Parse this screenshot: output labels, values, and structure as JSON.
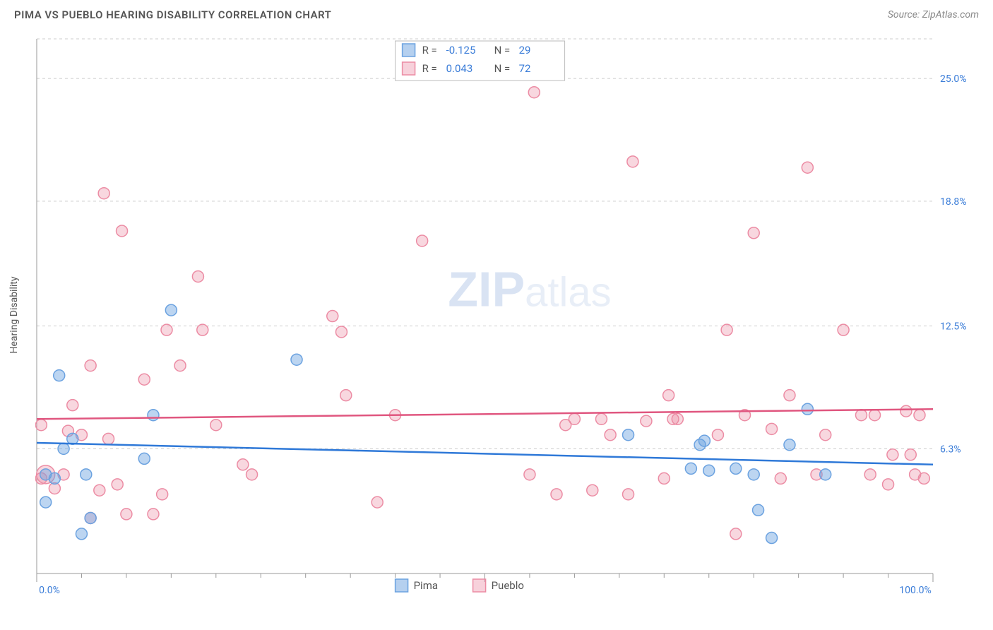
{
  "title": "PIMA VS PUEBLO HEARING DISABILITY CORRELATION CHART",
  "source_label": "Source: ZipAtlas.com",
  "watermark_bold": "ZIP",
  "watermark_light": "atlas",
  "yaxis_label": "Hearing Disability",
  "chart": {
    "type": "scatter",
    "xlim": [
      0,
      100
    ],
    "ylim": [
      0,
      27
    ],
    "y_gridlines": [
      6.3,
      12.5,
      18.8,
      25.0,
      27.0
    ],
    "y_tick_labels": [
      {
        "v": 6.3,
        "label": "6.3%"
      },
      {
        "v": 12.5,
        "label": "12.5%"
      },
      {
        "v": 18.8,
        "label": "18.8%"
      },
      {
        "v": 25.0,
        "label": "25.0%"
      }
    ],
    "x_ticks_minor": [
      5,
      10,
      15,
      20,
      25,
      30,
      35,
      40,
      45,
      55,
      60,
      65,
      70,
      75,
      80,
      85,
      90,
      95
    ],
    "x_ticks_major": [
      0,
      50,
      100
    ],
    "x_tick_labels": [
      {
        "v": 0,
        "label": "0.0%"
      },
      {
        "v": 100,
        "label": "100.0%"
      }
    ],
    "background_color": "#ffffff",
    "grid_color": "#cccccc",
    "axis_color": "#999999",
    "tick_label_color": "#3b7dd8",
    "series": {
      "pima": {
        "label": "Pima",
        "marker_color_fill": "rgba(107,162,224,0.45)",
        "marker_color_stroke": "#6ba2e0",
        "marker_radius": 8,
        "line_color": "#2f79d8",
        "line_width": 2.5,
        "trend": {
          "x1": 0,
          "y1": 6.6,
          "x2": 100,
          "y2": 5.5
        },
        "r_value": "-0.125",
        "n_value": "29",
        "points": [
          {
            "x": 1,
            "y": 5.0
          },
          {
            "x": 1,
            "y": 3.6
          },
          {
            "x": 2,
            "y": 4.8
          },
          {
            "x": 2.5,
            "y": 10.0
          },
          {
            "x": 3,
            "y": 6.3
          },
          {
            "x": 4,
            "y": 6.8
          },
          {
            "x": 5,
            "y": 2.0
          },
          {
            "x": 5.5,
            "y": 5.0
          },
          {
            "x": 6,
            "y": 2.8
          },
          {
            "x": 12,
            "y": 5.8
          },
          {
            "x": 13,
            "y": 8.0
          },
          {
            "x": 15,
            "y": 13.3
          },
          {
            "x": 29,
            "y": 10.8
          },
          {
            "x": 66,
            "y": 7.0
          },
          {
            "x": 73,
            "y": 5.3
          },
          {
            "x": 74,
            "y": 6.5
          },
          {
            "x": 74.5,
            "y": 6.7
          },
          {
            "x": 75,
            "y": 5.2
          },
          {
            "x": 80,
            "y": 5.0
          },
          {
            "x": 80.5,
            "y": 3.2
          },
          {
            "x": 84,
            "y": 6.5
          },
          {
            "x": 78,
            "y": 5.3
          },
          {
            "x": 82,
            "y": 1.8
          },
          {
            "x": 86,
            "y": 8.3
          },
          {
            "x": 88,
            "y": 5.0
          }
        ]
      },
      "pueblo": {
        "label": "Pueblo",
        "marker_color_fill": "rgba(236,140,164,0.35)",
        "marker_color_stroke": "#ec8ca4",
        "marker_radius": 8,
        "line_color": "#e0567f",
        "line_width": 2.5,
        "trend": {
          "x1": 0,
          "y1": 7.8,
          "x2": 100,
          "y2": 8.3
        },
        "r_value": "0.043",
        "n_value": "72",
        "points": [
          {
            "x": 0.5,
            "y": 4.8
          },
          {
            "x": 0.5,
            "y": 7.5
          },
          {
            "x": 1,
            "y": 5.0,
            "r": 13
          },
          {
            "x": 2,
            "y": 4.3
          },
          {
            "x": 3,
            "y": 5.0
          },
          {
            "x": 3.5,
            "y": 7.2
          },
          {
            "x": 4,
            "y": 8.5
          },
          {
            "x": 5,
            "y": 7.0
          },
          {
            "x": 6,
            "y": 2.8
          },
          {
            "x": 6,
            "y": 10.5
          },
          {
            "x": 7,
            "y": 4.2
          },
          {
            "x": 7.5,
            "y": 19.2
          },
          {
            "x": 8,
            "y": 6.8
          },
          {
            "x": 9,
            "y": 4.5
          },
          {
            "x": 9.5,
            "y": 17.3
          },
          {
            "x": 10,
            "y": 3.0
          },
          {
            "x": 12,
            "y": 9.8
          },
          {
            "x": 13,
            "y": 3.0
          },
          {
            "x": 14,
            "y": 4.0
          },
          {
            "x": 14.5,
            "y": 12.3
          },
          {
            "x": 16,
            "y": 10.5
          },
          {
            "x": 18,
            "y": 15.0
          },
          {
            "x": 18.5,
            "y": 12.3
          },
          {
            "x": 20,
            "y": 7.5
          },
          {
            "x": 23,
            "y": 5.5
          },
          {
            "x": 24,
            "y": 5.0
          },
          {
            "x": 33,
            "y": 13.0
          },
          {
            "x": 34,
            "y": 12.2
          },
          {
            "x": 34.5,
            "y": 9.0
          },
          {
            "x": 38,
            "y": 3.6
          },
          {
            "x": 40,
            "y": 8.0
          },
          {
            "x": 43,
            "y": 16.8
          },
          {
            "x": 55,
            "y": 5.0
          },
          {
            "x": 55.5,
            "y": 24.3
          },
          {
            "x": 58,
            "y": 4.0
          },
          {
            "x": 59,
            "y": 7.5
          },
          {
            "x": 60,
            "y": 7.8
          },
          {
            "x": 62,
            "y": 4.2
          },
          {
            "x": 63,
            "y": 7.8
          },
          {
            "x": 64,
            "y": 7.0
          },
          {
            "x": 66,
            "y": 4.0
          },
          {
            "x": 66.5,
            "y": 20.8
          },
          {
            "x": 68,
            "y": 7.7
          },
          {
            "x": 70,
            "y": 4.8
          },
          {
            "x": 70.5,
            "y": 9.0
          },
          {
            "x": 71,
            "y": 7.8
          },
          {
            "x": 71.5,
            "y": 7.8
          },
          {
            "x": 76,
            "y": 7.0
          },
          {
            "x": 77,
            "y": 12.3
          },
          {
            "x": 78,
            "y": 2.0
          },
          {
            "x": 79,
            "y": 8.0
          },
          {
            "x": 80,
            "y": 17.2
          },
          {
            "x": 82,
            "y": 7.3
          },
          {
            "x": 83,
            "y": 4.8
          },
          {
            "x": 84,
            "y": 9.0
          },
          {
            "x": 86,
            "y": 20.5
          },
          {
            "x": 87,
            "y": 5.0
          },
          {
            "x": 88,
            "y": 7.0
          },
          {
            "x": 90,
            "y": 12.3
          },
          {
            "x": 92,
            "y": 8.0
          },
          {
            "x": 93,
            "y": 5.0
          },
          {
            "x": 93.5,
            "y": 8.0
          },
          {
            "x": 95,
            "y": 4.5
          },
          {
            "x": 95.5,
            "y": 6.0
          },
          {
            "x": 97,
            "y": 8.2
          },
          {
            "x": 97.5,
            "y": 6.0
          },
          {
            "x": 98,
            "y": 5.0
          },
          {
            "x": 98.5,
            "y": 8.0
          },
          {
            "x": 99,
            "y": 4.8
          }
        ]
      }
    },
    "legend_top": {
      "rows": [
        {
          "swatch": "pima",
          "r_label": "R =",
          "r": "-0.125",
          "n_label": "N =",
          "n": "29"
        },
        {
          "swatch": "pueblo",
          "r_label": "R =",
          "r": "0.043",
          "n_label": "N =",
          "n": "72"
        }
      ]
    },
    "legend_bottom": {
      "items": [
        {
          "swatch": "pima",
          "label": "Pima"
        },
        {
          "swatch": "pueblo",
          "label": "Pueblo"
        }
      ]
    }
  }
}
